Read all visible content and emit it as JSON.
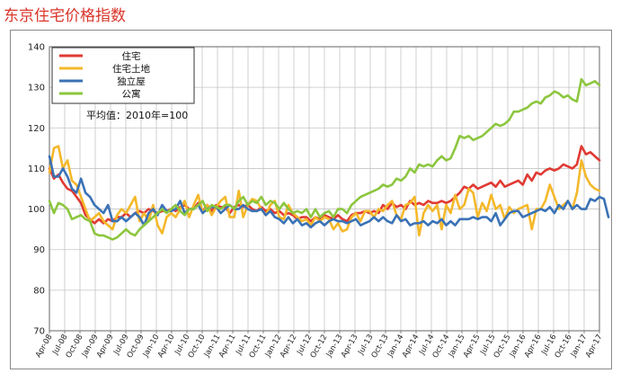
{
  "title": "东京住宅价格指数",
  "chart_data": {
    "type": "line",
    "title": "东京住宅价格指数",
    "ylim": [
      70,
      140
    ],
    "yticks": [
      70,
      80,
      90,
      100,
      110,
      120,
      130,
      140
    ],
    "grid": true,
    "legend_position": "top-left",
    "note": "平均值：2010年=100",
    "x_tick_labels": [
      "Apr-08",
      "Jul-08",
      "Oct-08",
      "Jan-09",
      "Apr-09",
      "Jul-09",
      "Oct-09",
      "Jan-10",
      "Apr-10",
      "Jul-10",
      "Oct-10",
      "Jan-11",
      "Apr-11",
      "Jul-11",
      "Oct-11",
      "Jan-12",
      "Apr-12",
      "Jul-12",
      "Oct-12",
      "Jan-13",
      "Apr-13",
      "Jul-13",
      "Oct-13",
      "Jan-14",
      "Apr-14",
      "Jul-14",
      "Oct-14",
      "Jan-15",
      "Apr-15",
      "Jul-15",
      "Oct-15",
      "Jan-16",
      "Apr-16",
      "Jul-16",
      "Oct-16",
      "Jan-17",
      "Apr-17"
    ],
    "series": [
      {
        "name": "住宅",
        "color": "#e03a33",
        "values": [
          110,
          107.5,
          108.5,
          106.5,
          105,
          104.5,
          103,
          101.5,
          98.5,
          97.5,
          96.5,
          97.5,
          96.5,
          97.5,
          97,
          98,
          98,
          99,
          98,
          99,
          99.5,
          99,
          100,
          99.5,
          99,
          99.5,
          99.5,
          100,
          99.5,
          100.5,
          101,
          100,
          100,
          101.5,
          99.5,
          101,
          99.5,
          101,
          100.5,
          100.5,
          99,
          100.5,
          101,
          100.5,
          101,
          100,
          99.5,
          100.5,
          99.5,
          100,
          99,
          99.5,
          98.5,
          99,
          98.5,
          97.5,
          98,
          98,
          97,
          98,
          97.5,
          98.5,
          98,
          97.5,
          98.5,
          97.5,
          97,
          98.5,
          99,
          99,
          99.5,
          99,
          99.5,
          99,
          101,
          100,
          101.5,
          100.5,
          101,
          100,
          102,
          101,
          101.5,
          101,
          102,
          101.5,
          101.5,
          102,
          101.5,
          102,
          103,
          104,
          105.5,
          105,
          106,
          105,
          105.5,
          106,
          106.5,
          105.5,
          107,
          105.5,
          106,
          106.5,
          107,
          106,
          108.5,
          107,
          109,
          108.5,
          109.5,
          110,
          109.5,
          110,
          111,
          110.5,
          110,
          111,
          115.5,
          113.5,
          114,
          113,
          112
        ]
      },
      {
        "name": "住宅土地",
        "color": "#f4b82a",
        "values": [
          109,
          115,
          115.5,
          110,
          112,
          107,
          106,
          103,
          100,
          97,
          98,
          99,
          97,
          96,
          95,
          98.5,
          100,
          99,
          101,
          103,
          97,
          99,
          97,
          101,
          96,
          94,
          98,
          99,
          98,
          100,
          102,
          98,
          101,
          103.5,
          99,
          101,
          98.5,
          100.5,
          102,
          103,
          98,
          98,
          104.5,
          98,
          101,
          102.5,
          102,
          100,
          98.5,
          101,
          102,
          98,
          97.5,
          101,
          99,
          98,
          97,
          97.5,
          96,
          98,
          97,
          98,
          97.5,
          95,
          96.5,
          94.5,
          95,
          98,
          99,
          97,
          99.5,
          99.5,
          98,
          100,
          99.5,
          101,
          102,
          98.5,
          97.5,
          101,
          101.5,
          103,
          93.5,
          99,
          101,
          99.5,
          101,
          95,
          101,
          99,
          103.5,
          100,
          101,
          105,
          104,
          98,
          101.5,
          99.5,
          103.5,
          100,
          101,
          97.5,
          100.5,
          99,
          100,
          100.5,
          101,
          95,
          100,
          100,
          102,
          106,
          103,
          100,
          101,
          102,
          100,
          104,
          112,
          108,
          106,
          105,
          104.5
        ]
      },
      {
        "name": "独立屋",
        "color": "#3a72b6",
        "values": [
          113,
          108,
          108,
          110,
          108,
          105,
          104,
          107.5,
          104,
          103,
          101,
          100,
          99,
          101,
          97,
          97,
          98,
          97,
          98,
          99,
          98,
          96,
          99,
          100,
          98.5,
          101,
          99.5,
          99.5,
          100,
          102,
          99,
          100,
          100,
          101,
          99,
          100,
          100.5,
          100.5,
          99,
          100,
          101,
          100,
          100,
          101,
          100,
          99.5,
          99.5,
          100,
          98.5,
          99.5,
          98,
          97.5,
          96.5,
          98,
          96.5,
          97.5,
          96,
          96.5,
          95.5,
          96.5,
          97,
          96,
          97,
          97.5,
          97,
          97,
          96.5,
          97,
          97.5,
          96,
          96.5,
          97,
          98,
          97,
          98,
          97,
          96.5,
          98.5,
          97,
          97.5,
          96,
          96.5,
          96.5,
          97,
          96,
          97,
          96.5,
          97.5,
          96,
          97,
          96,
          97.5,
          97.5,
          97.5,
          98,
          97.5,
          98,
          98,
          97,
          99,
          96,
          97.5,
          99,
          99.5,
          99.5,
          98,
          98.5,
          99,
          99.5,
          100,
          99.5,
          100.5,
          99,
          101,
          100,
          102,
          100,
          101,
          100,
          100,
          102.5,
          102,
          103,
          102.5,
          98
        ]
      },
      {
        "name": "公寓",
        "color": "#8cc63e",
        "values": [
          102,
          99,
          101.5,
          101,
          100,
          97.5,
          98,
          98.5,
          97.5,
          97,
          94,
          93.5,
          93.5,
          93,
          92.5,
          93,
          94,
          95,
          94,
          93.5,
          95,
          96,
          97,
          98,
          99,
          100,
          99,
          100,
          101,
          99.5,
          98.5,
          100,
          100,
          101,
          102,
          99.5,
          101,
          100.5,
          100,
          101,
          101,
          100,
          102,
          103,
          101,
          102,
          101.5,
          103,
          101,
          102,
          101.5,
          100,
          101.5,
          100,
          99,
          99.5,
          99,
          100,
          98,
          100,
          98,
          99,
          99.5,
          98,
          100,
          100,
          99,
          101,
          102,
          103,
          103.5,
          104,
          104.5,
          105,
          106,
          105.5,
          106,
          107.5,
          107,
          108,
          110,
          109,
          111,
          110.5,
          111,
          110.5,
          112,
          113,
          112,
          112.5,
          115,
          118,
          117.5,
          118,
          117,
          117.5,
          118,
          119,
          120,
          121,
          120.5,
          121,
          122,
          124,
          124,
          124.5,
          125,
          126,
          126.5,
          126,
          127.5,
          128,
          129,
          128.5,
          127.5,
          128,
          127,
          126.5,
          132,
          130.5,
          131,
          131.5,
          130.5
        ]
      }
    ]
  }
}
